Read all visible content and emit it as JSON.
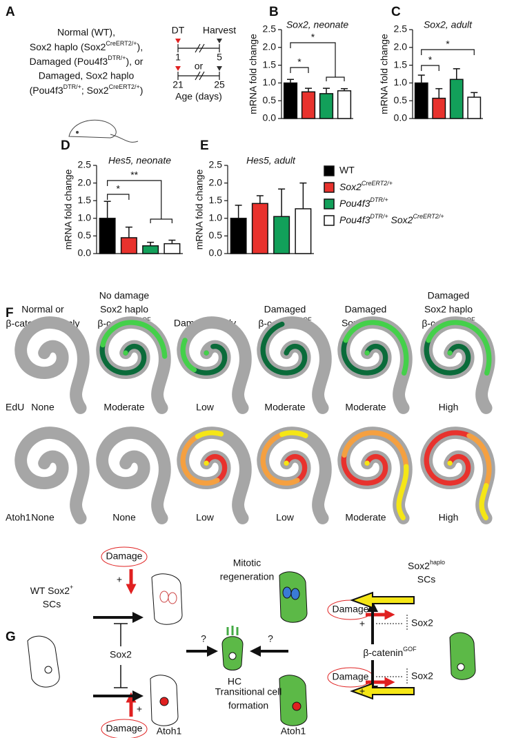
{
  "panel_labels": [
    "A",
    "B",
    "C",
    "D",
    "E",
    "F",
    "G"
  ],
  "panel_a": {
    "groups": [
      "Normal (WT),",
      {
        "text": [
          "Sox2 haplo (Sox2",
          "),"
        ],
        "sup": [
          "CreERT2/+"
        ]
      },
      {
        "text": [
          "Damaged (Pou4f3",
          "), or"
        ],
        "sup": [
          "DTR/+"
        ]
      },
      "Damaged, Sox2 haplo",
      {
        "text": [
          "(Pou4f3",
          "; Sox2",
          ")"
        ],
        "sup": [
          "DTR/+",
          "CreERT2/+"
        ]
      }
    ],
    "timeline": {
      "dt": "DT",
      "harvest": "Harvest",
      "labels": [
        "1",
        "5",
        "or",
        "21",
        "25"
      ],
      "axis": "Age (days)"
    }
  },
  "chart_data": [
    {
      "type": "bar",
      "title": "Sox2, neonate",
      "ylabel": "mRNA fold change",
      "values": [
        1.0,
        0.75,
        0.7,
        0.78
      ],
      "errors": [
        0.1,
        0.1,
        0.15,
        0.06
      ],
      "ylim": [
        0,
        2.5
      ],
      "yticks": [
        {
          "value": 0,
          "label": "0.0"
        },
        0.5,
        {
          "value": 1,
          "label": "1.0"
        },
        1.5,
        {
          "value": 2,
          "label": "2.0"
        },
        2.5
      ],
      "annotations": [
        "*",
        "*"
      ]
    },
    {
      "type": "bar",
      "title": "Sox2, adult",
      "ylabel": "mRNA fold change",
      "values": [
        1.0,
        0.57,
        1.1,
        0.6
      ],
      "errors": [
        0.22,
        0.27,
        0.3,
        0.13
      ],
      "ylim": [
        0,
        2.5
      ],
      "yticks": [
        {
          "value": 0,
          "label": "0.0"
        },
        0.5,
        {
          "value": 1,
          "label": "1.0"
        },
        1.5,
        {
          "value": 2,
          "label": "2.0"
        },
        2.5
      ],
      "annotations": [
        "*",
        "*"
      ]
    },
    {
      "type": "bar",
      "title": "Hes5, neonate",
      "ylabel": "mRNA fold change",
      "values": [
        1.0,
        0.45,
        0.22,
        0.28
      ],
      "errors": [
        0.48,
        0.3,
        0.1,
        0.1
      ],
      "ylim": [
        0,
        2.5
      ],
      "yticks": [
        {
          "value": 0,
          "label": "0.0"
        },
        0.5,
        {
          "value": 1,
          "label": "1.0"
        },
        1.5,
        {
          "value": 2,
          "label": "2.0"
        },
        2.5
      ],
      "annotations": [
        "*",
        "**"
      ]
    },
    {
      "type": "bar",
      "title": "Hes5, adult",
      "ylabel": "mRNA fold change",
      "values": [
        1.0,
        1.42,
        1.05,
        1.27
      ],
      "errors": [
        0.37,
        0.22,
        0.78,
        0.73
      ],
      "ylim": [
        0,
        2.5
      ],
      "yticks": [
        {
          "value": 0,
          "label": "0.0"
        },
        0.5,
        {
          "value": 1,
          "label": "1.0"
        },
        1.5,
        {
          "value": 2,
          "label": "2.0"
        },
        2.5
      ],
      "annotations": []
    }
  ],
  "legend": [
    {
      "name": "WT",
      "color": "#000000"
    },
    {
      "name": {
        "text": [
          "Sox2"
        ],
        "sup": [
          "CreERT2/+"
        ]
      },
      "color": "#e8322d"
    },
    {
      "name": {
        "text": [
          "Pou4f3"
        ],
        "sup": [
          "DTR/+"
        ]
      },
      "color": "#12a05a"
    },
    {
      "name": {
        "text": [
          "Pou4f3",
          " Sox2"
        ],
        "sup": [
          "DTR/+",
          "CreERT2/+"
        ]
      },
      "color": "#ffffff"
    }
  ],
  "panel_f": {
    "columns": [
      [
        "Normal or",
        {
          "text": [
            "β-catenin",
            " only"
          ],
          "sup": [
            "GOF"
          ]
        }
      ],
      [
        "No damage",
        "Sox2 haplo",
        {
          "text": [
            "β-catenin"
          ],
          "sup": [
            "GOF"
          ]
        }
      ],
      [
        "Damaged only"
      ],
      [
        "Damaged",
        {
          "text": [
            "β-catenin"
          ],
          "sup": [
            "GOF"
          ]
        }
      ],
      [
        "Damaged",
        "Sox2 haplo"
      ],
      [
        "Damaged",
        "Sox2 haplo",
        {
          "text": [
            "β-catenin"
          ],
          "sup": [
            "GOF"
          ]
        }
      ]
    ],
    "rows": [
      {
        "label": "EdU",
        "levels": [
          "None",
          "Moderate",
          "Low",
          "Moderate",
          "Moderate",
          "High"
        ]
      },
      {
        "label": "Atoh1",
        "levels": [
          "None",
          "None",
          "Low",
          "Low",
          "Moderate",
          "High"
        ]
      }
    ]
  },
  "panel_g": {
    "texts": [
      "Damage",
      "+",
      {
        "text": [
          "WT Sox2"
        ],
        "sup": [
          "+"
        ]
      },
      "SCs",
      "Sox2",
      "+",
      "Damage",
      "Atoh1",
      "Mitotic",
      "regeneration",
      "?",
      "?",
      "HC",
      "Transitional cell",
      "formation",
      "Atoh1",
      {
        "text": [
          "Sox2"
        ],
        "sup": [
          "haplo"
        ]
      },
      "SCs",
      "Damage",
      "+",
      "Sox2",
      {
        "text": [
          "β-catenin"
        ],
        "sup": [
          "GOF"
        ]
      },
      "Damage",
      "+",
      "Sox2"
    ]
  }
}
